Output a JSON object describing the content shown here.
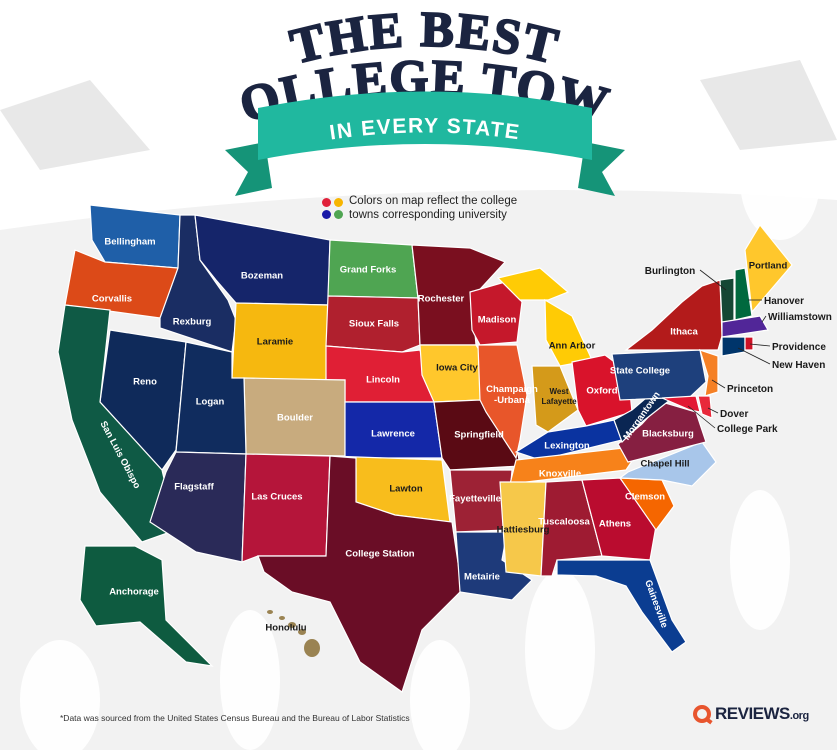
{
  "title": {
    "line1": "THE BEST",
    "line2": "COLLEGE TOWN",
    "ribbon": "IN EVERY STATE"
  },
  "legend": {
    "line1": "Colors on map reflect the college",
    "line2": "towns corresponding university",
    "dot_colors": [
      "#e0213a",
      "#f7b500",
      "#1a1aa8",
      "#4fa552"
    ]
  },
  "colors": {
    "title": "#1b2440",
    "ribbon": "#20b89f",
    "ribbon_dark": "#159478",
    "background": "#f2f2f2"
  },
  "towns": [
    {
      "state": "WA",
      "name": "Bellingham",
      "color": "#1f5fa8"
    },
    {
      "state": "OR",
      "name": "Corvallis",
      "color": "#dc4a18"
    },
    {
      "state": "ID",
      "name": "Rexburg",
      "color": "#1a2d63"
    },
    {
      "state": "MT",
      "name": "Bozeman",
      "color": "#15256a"
    },
    {
      "state": "WY",
      "name": "Laramie",
      "color": "#f6b80f"
    },
    {
      "state": "ND",
      "name": "Grand Forks",
      "color": "#4fa552"
    },
    {
      "state": "SD",
      "name": "Sioux Falls",
      "color": "#b0202e"
    },
    {
      "state": "NE",
      "name": "Lincoln",
      "color": "#e01f35"
    },
    {
      "state": "CO",
      "name": "Boulder",
      "color": "#c8ab7e"
    },
    {
      "state": "KS",
      "name": "Lawrence",
      "color": "#1428a8"
    },
    {
      "state": "NV",
      "name": "Reno",
      "color": "#0f2a5a"
    },
    {
      "state": "UT",
      "name": "Logan",
      "color": "#102c5e"
    },
    {
      "state": "CA",
      "name": "San Luis Obispo",
      "color": "#0f5a45"
    },
    {
      "state": "AZ",
      "name": "Flagstaff",
      "color": "#2a2a58"
    },
    {
      "state": "NM",
      "name": "Las Cruces",
      "color": "#b5153a"
    },
    {
      "state": "OK",
      "name": "Lawton",
      "color": "#f8bd1c"
    },
    {
      "state": "TX",
      "name": "College Station",
      "color": "#6a0d26"
    },
    {
      "state": "MN",
      "name": "Rochester",
      "color": "#7a0f1f"
    },
    {
      "state": "IA",
      "name": "Iowa City",
      "color": "#ffc72c"
    },
    {
      "state": "MO",
      "name": "Springfield",
      "color": "#5a0a14"
    },
    {
      "state": "AR",
      "name": "Fayetteville",
      "color": "#9d2235"
    },
    {
      "state": "LA",
      "name": "Metairie",
      "color": "#1e3a7a"
    },
    {
      "state": "WI",
      "name": "Madison",
      "color": "#c5182b"
    },
    {
      "state": "IL",
      "name": "Champaign -Urbana",
      "color": "#e8562a"
    },
    {
      "state": "MI",
      "name": "Ann Arbor",
      "color": "#ffcb05"
    },
    {
      "state": "IN",
      "name": "West Lafayette",
      "color": "#d49a1a"
    },
    {
      "state": "OH",
      "name": "Oxford",
      "color": "#d9132b"
    },
    {
      "state": "KY",
      "name": "Lexington",
      "color": "#0a33a0"
    },
    {
      "state": "TN",
      "name": "Knoxville",
      "color": "#f7821a"
    },
    {
      "state": "MS",
      "name": "Hattiesburg",
      "color": "#f6c84a"
    },
    {
      "state": "AL",
      "name": "Tuscaloosa",
      "color": "#9e1b32"
    },
    {
      "state": "GA",
      "name": "Athens",
      "color": "#ba0c2f"
    },
    {
      "state": "FL",
      "name": "Gainesville",
      "color": "#0b3d91"
    },
    {
      "state": "SC",
      "name": "Clemson",
      "color": "#f56600"
    },
    {
      "state": "NC",
      "name": "Chapel Hill",
      "color": "#a8c6ea"
    },
    {
      "state": "VA",
      "name": "Blacksburg",
      "color": "#861f41"
    },
    {
      "state": "WV",
      "name": "Morgantown",
      "color": "#0a2653"
    },
    {
      "state": "PA",
      "name": "State College",
      "color": "#1e407c"
    },
    {
      "state": "NY",
      "name": "Ithaca",
      "color": "#b31b1b"
    },
    {
      "state": "NJ",
      "name": "Princeton",
      "color": "#f58025"
    },
    {
      "state": "MD",
      "name": "College Park",
      "color": "#e21833"
    },
    {
      "state": "DE",
      "name": "Dover",
      "color": "#e8283a"
    },
    {
      "state": "VT",
      "name": "Burlington",
      "color": "#154734"
    },
    {
      "state": "NH",
      "name": "Hanover",
      "color": "#00693e"
    },
    {
      "state": "ME",
      "name": "Portland",
      "color": "#ffc72c"
    },
    {
      "state": "MA",
      "name": "Williamstown",
      "color": "#512698"
    },
    {
      "state": "CT",
      "name": "New Haven",
      "color": "#00356b"
    },
    {
      "state": "RI",
      "name": "Providence",
      "color": "#ce1126"
    },
    {
      "state": "AK",
      "name": "Anchorage",
      "color": "#0e5b40"
    },
    {
      "state": "HI",
      "name": "Honolulu",
      "color": "#9a8352"
    }
  ],
  "footnote": "*Data was sourced from the United States Census Bureau and the Bureau of Labor Statistics",
  "logo": {
    "main": "REVIEWS",
    "suffix": ".org",
    "accent": "#e8552e"
  }
}
